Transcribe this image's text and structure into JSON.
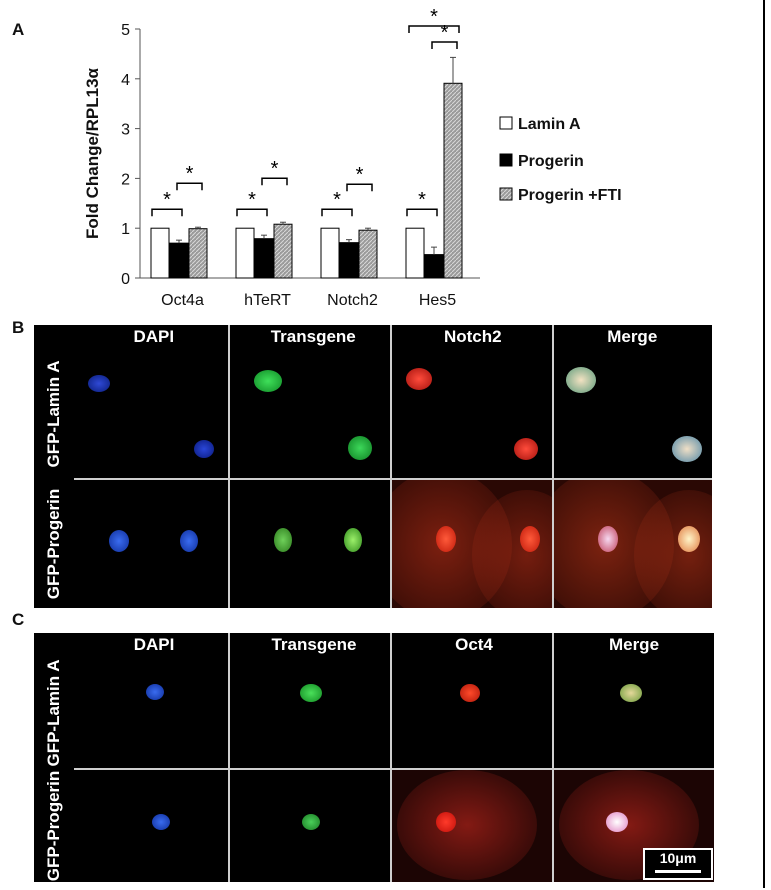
{
  "panels": {
    "a": "A",
    "b": "B",
    "c": "C"
  },
  "chart_data": {
    "type": "bar",
    "ylabel": "Fold Change/RPL13α",
    "ylim": [
      0,
      5
    ],
    "yticks": [
      "0",
      "1",
      "2",
      "3",
      "4",
      "5"
    ],
    "categories": [
      "Oct4a",
      "hTeRT",
      "Notch2",
      "Hes5"
    ],
    "series": [
      {
        "name": "Lamin A",
        "values": [
          1.0,
          1.0,
          1.0,
          1.0
        ],
        "errors": [
          0,
          0,
          0,
          0
        ],
        "color": "#ffffff"
      },
      {
        "name": "Progerin",
        "values": [
          0.7,
          0.79,
          0.71,
          0.47
        ],
        "errors": [
          0.06,
          0.07,
          0.06,
          0.15
        ],
        "color": "#000000"
      },
      {
        "name": "Progerin +FTI",
        "values": [
          0.99,
          1.08,
          0.96,
          3.91
        ],
        "errors": [
          0.03,
          0.04,
          0.04,
          0.52
        ],
        "color": "#9a9a9a"
      }
    ],
    "significance_marker": "*"
  },
  "panel_b": {
    "columns": [
      "DAPI",
      "Transgene",
      "Notch2",
      "Merge"
    ],
    "rows": [
      "GFP-Lamin A",
      "GFP-Progerin"
    ]
  },
  "panel_c": {
    "columns": [
      "DAPI",
      "Transgene",
      "Oct4",
      "Merge"
    ],
    "rows": [
      "GFP-Lamin A",
      "GFP-Progerin"
    ],
    "scale_bar": "10μm"
  }
}
